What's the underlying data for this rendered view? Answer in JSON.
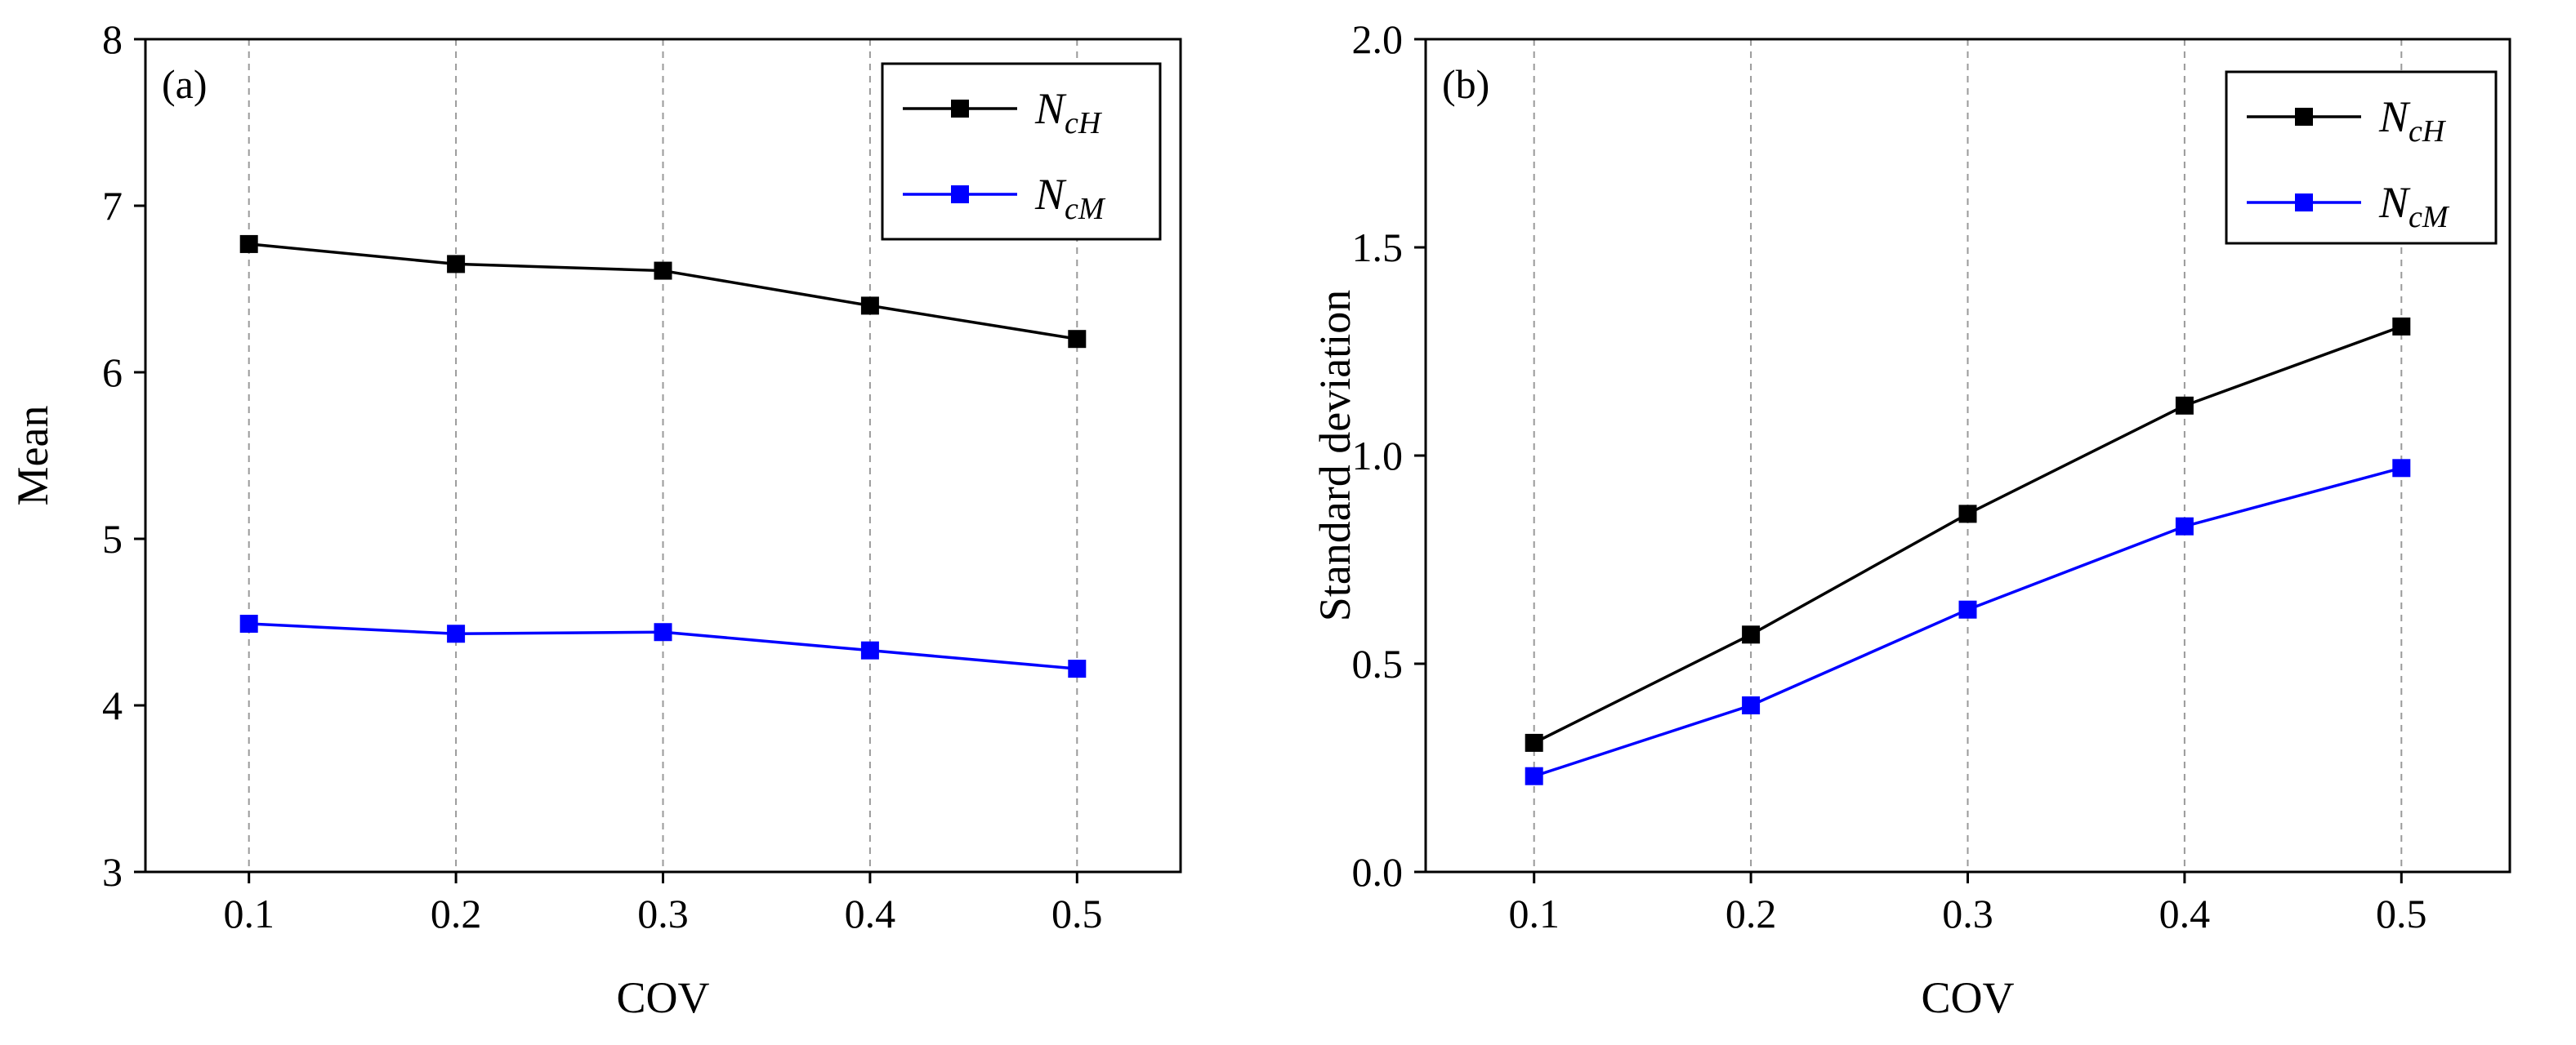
{
  "chart_data": [
    {
      "type": "line",
      "panel_label": "(a)",
      "x": [
        0.1,
        0.2,
        0.3,
        0.4,
        0.5
      ],
      "x_tick_labels": [
        "0.1",
        "0.2",
        "0.3",
        "0.4",
        "0.5"
      ],
      "xlim": [
        0.05,
        0.55
      ],
      "ylim": [
        3,
        8
      ],
      "y_ticks": [
        3,
        4,
        5,
        6,
        7,
        8
      ],
      "y_tick_labels": [
        "3",
        "4",
        "5",
        "6",
        "7",
        "8"
      ],
      "xlabel": "COV",
      "ylabel": "Mean",
      "grid": "vertical-dashed",
      "legend_position": "top-right",
      "series": [
        {
          "name": "NcH",
          "legend_main": "N",
          "legend_sub": "cH",
          "color": "#000000",
          "values": [
            6.77,
            6.65,
            6.61,
            6.4,
            6.2
          ]
        },
        {
          "name": "NcM",
          "legend_main": "N",
          "legend_sub": "cM",
          "color": "#0000ff",
          "values": [
            4.49,
            4.43,
            4.44,
            4.33,
            4.22
          ]
        }
      ]
    },
    {
      "type": "line",
      "panel_label": "(b)",
      "x": [
        0.1,
        0.2,
        0.3,
        0.4,
        0.5
      ],
      "x_tick_labels": [
        "0.1",
        "0.2",
        "0.3",
        "0.4",
        "0.5"
      ],
      "xlim": [
        0.05,
        0.55
      ],
      "ylim": [
        0.0,
        2.0
      ],
      "y_ticks": [
        0.0,
        0.5,
        1.0,
        1.5,
        2.0
      ],
      "y_tick_labels": [
        "0.0",
        "0.5",
        "1.0",
        "1.5",
        "2.0"
      ],
      "xlabel": "COV",
      "ylabel": "Standard deviation",
      "grid": "vertical-dashed",
      "legend_position": "top-right",
      "series": [
        {
          "name": "NcH",
          "legend_main": "N",
          "legend_sub": "cH",
          "color": "#000000",
          "values": [
            0.31,
            0.57,
            0.86,
            1.12,
            1.31
          ]
        },
        {
          "name": "NcM",
          "legend_main": "N",
          "legend_sub": "cM",
          "color": "#0000ff",
          "values": [
            0.23,
            0.4,
            0.63,
            0.83,
            0.97
          ]
        }
      ]
    }
  ]
}
